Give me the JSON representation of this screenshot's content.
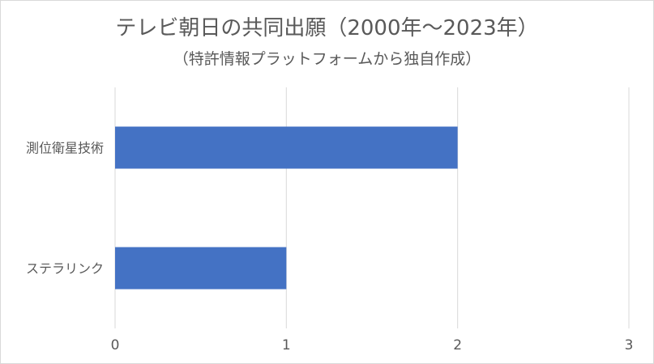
{
  "chart_data": {
    "type": "bar",
    "orientation": "horizontal",
    "title": "テレビ朝日の共同出願（2000年～2023年）",
    "subtitle": "（特許情報プラットフォームから独自作成）",
    "categories": [
      "測位衛星技術",
      "ステラリンク"
    ],
    "values": [
      2,
      1
    ],
    "xlim": [
      0,
      3
    ],
    "xticks": [
      "0",
      "1",
      "2",
      "3"
    ],
    "grid": true,
    "legend": "none",
    "bar_color": "#4472c4",
    "grid_color": "#d9d9d9"
  }
}
